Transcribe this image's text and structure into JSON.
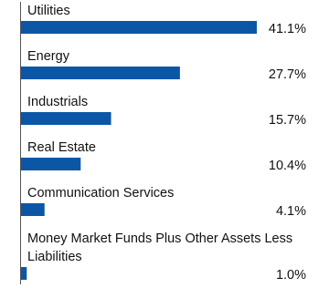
{
  "chart_data": {
    "type": "bar",
    "orientation": "horizontal",
    "color": "#0b57a6",
    "categories": [
      "Utilities",
      "Energy",
      "Industrials",
      "Real Estate",
      "Communication Services",
      "Money Market Funds Plus Other Assets Less Liabilities"
    ],
    "values": [
      41.1,
      27.7,
      15.7,
      10.4,
      4.1,
      1.0
    ],
    "value_labels": [
      "41.1%",
      "27.7%",
      "15.7%",
      "10.4%",
      "4.1%",
      "1.0%"
    ]
  }
}
